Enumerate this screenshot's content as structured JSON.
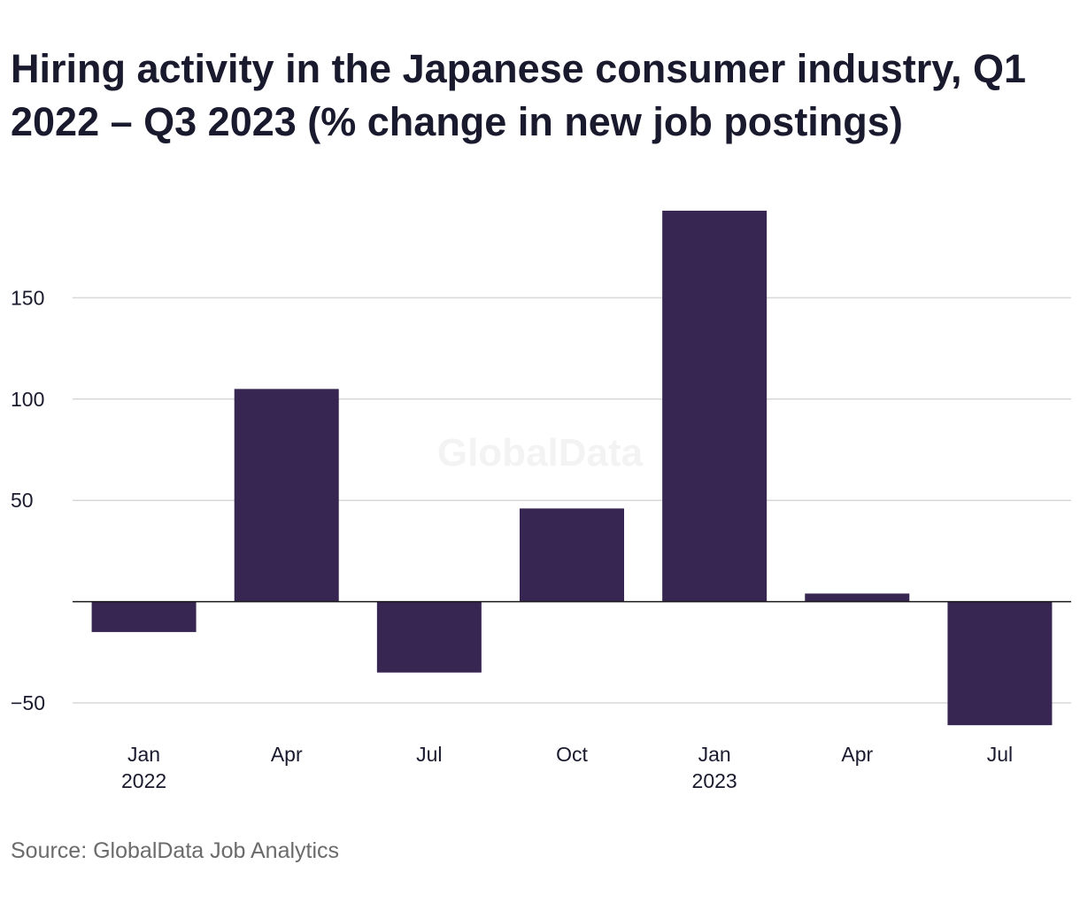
{
  "title": "Hiring activity in the Japanese consumer industry, Q1 2022 – Q3 2023 (% change in new job postings)",
  "source": "Source: GlobalData Job Analytics",
  "watermark": "GlobalData",
  "colors": {
    "bar": "#372651",
    "grid": "#d9d9d9",
    "zero_line": "#1a1a1a",
    "tick_text": "#1a1a2e",
    "watermark": "#f3f3f3"
  },
  "chart_data": {
    "type": "bar",
    "title": "Hiring activity in the Japanese consumer industry, Q1 2022 – Q3 2023 (% change in new job postings)",
    "xlabel": "",
    "ylabel": "",
    "categories": [
      {
        "label": "Jan",
        "sublabel": "2022"
      },
      {
        "label": "Apr",
        "sublabel": ""
      },
      {
        "label": "Jul",
        "sublabel": ""
      },
      {
        "label": "Oct",
        "sublabel": ""
      },
      {
        "label": "Jan",
        "sublabel": "2023"
      },
      {
        "label": "Apr",
        "sublabel": ""
      },
      {
        "label": "Jul",
        "sublabel": ""
      }
    ],
    "values": [
      -15,
      105,
      -35,
      46,
      193,
      4,
      -61
    ],
    "ylim": [
      -61,
      193
    ],
    "yticks": [
      150,
      100,
      50,
      -50
    ],
    "ytick_labels": [
      "150",
      "100",
      "50",
      "−50"
    ],
    "grid": true,
    "legend": "none"
  }
}
